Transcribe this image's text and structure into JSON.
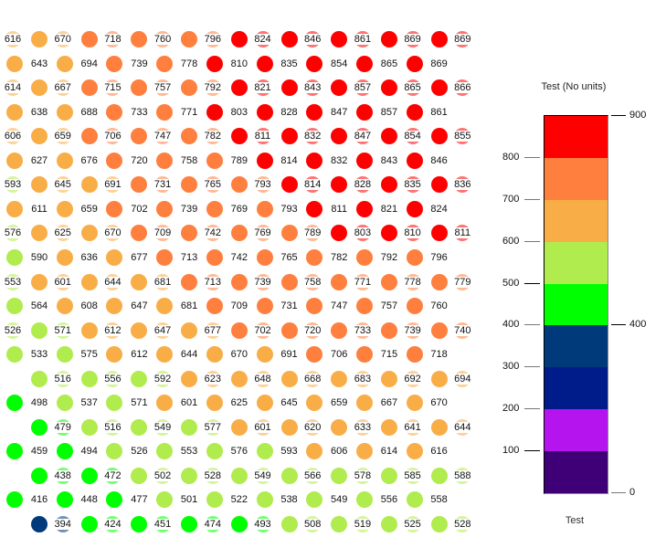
{
  "chart_data": {
    "type": "scatter",
    "title": "",
    "xlabel": "",
    "ylabel": "",
    "description": "Grid of colored dots with value labels; dot color determined by value bins",
    "rows": [
      {
        "pattern": "labeled",
        "values": [
          616,
          670,
          718,
          760,
          796,
          824,
          846,
          861,
          869,
          869
        ]
      },
      {
        "pattern": "dot",
        "values": [
          643,
          694,
          739,
          778,
          810,
          835,
          854,
          865,
          869
        ]
      },
      {
        "pattern": "labeled",
        "values": [
          614,
          667,
          715,
          757,
          792,
          821,
          843,
          857,
          865,
          866
        ]
      },
      {
        "pattern": "dot",
        "values": [
          638,
          688,
          733,
          771,
          803,
          828,
          847,
          857,
          861
        ]
      },
      {
        "pattern": "labeled",
        "values": [
          606,
          659,
          706,
          747,
          782,
          811,
          832,
          847,
          854,
          855
        ]
      },
      {
        "pattern": "dot",
        "values": [
          627,
          676,
          720,
          758,
          789,
          814,
          832,
          843,
          846
        ]
      },
      {
        "pattern": "labeled",
        "values": [
          593,
          645,
          691,
          731,
          765,
          793,
          814,
          828,
          835,
          836
        ]
      },
      {
        "pattern": "dot",
        "values": [
          611,
          659,
          702,
          739,
          769,
          793,
          811,
          821,
          824
        ]
      },
      {
        "pattern": "labeled",
        "values": [
          576,
          625,
          670,
          709,
          742,
          769,
          789,
          803,
          810,
          811
        ]
      },
      {
        "pattern": "dot",
        "values": [
          590,
          636,
          677,
          713,
          742,
          765,
          782,
          792,
          796
        ]
      },
      {
        "pattern": "labeled",
        "values": [
          553,
          601,
          644,
          681,
          713,
          739,
          758,
          771,
          778,
          779
        ]
      },
      {
        "pattern": "dot",
        "values": [
          564,
          608,
          647,
          681,
          709,
          731,
          747,
          757,
          760
        ]
      },
      {
        "pattern": "labeled",
        "values": [
          526,
          571,
          612,
          647,
          677,
          702,
          720,
          733,
          739,
          740
        ]
      },
      {
        "pattern": "dot",
        "values": [
          533,
          575,
          612,
          644,
          670,
          691,
          706,
          715,
          718
        ]
      },
      {
        "pattern": "labeled",
        "values": [
          null,
          516,
          556,
          592,
          623,
          648,
          668,
          683,
          692,
          694
        ]
      },
      {
        "pattern": "dot",
        "values": [
          498,
          537,
          571,
          601,
          625,
          645,
          659,
          667,
          670
        ]
      },
      {
        "pattern": "labeled",
        "values": [
          null,
          479,
          516,
          549,
          577,
          601,
          620,
          633,
          641,
          644
        ]
      },
      {
        "pattern": "dot",
        "values": [
          459,
          494,
          526,
          553,
          576,
          593,
          606,
          614,
          616
        ]
      },
      {
        "pattern": "labeled",
        "values": [
          null,
          438,
          472,
          502,
          528,
          549,
          566,
          578,
          585,
          588
        ]
      },
      {
        "pattern": "dot",
        "values": [
          416,
          448,
          477,
          501,
          522,
          538,
          549,
          556,
          558
        ]
      },
      {
        "pattern": "labeled",
        "values": [
          null,
          394,
          424,
          451,
          474,
          493,
          508,
          519,
          525,
          528
        ]
      }
    ],
    "legend": {
      "title": "Test (No units)",
      "footer": "Test",
      "range": [
        0,
        900
      ],
      "bins": [
        {
          "from": 800,
          "to": 900,
          "color": "#ff0000"
        },
        {
          "from": 700,
          "to": 800,
          "color": "#ff7f3f"
        },
        {
          "from": 600,
          "to": 700,
          "color": "#f9ad47"
        },
        {
          "from": 500,
          "to": 600,
          "color": "#b0ec4d"
        },
        {
          "from": 400,
          "to": 500,
          "color": "#00ff00"
        },
        {
          "from": 300,
          "to": 400,
          "color": "#003a7a"
        },
        {
          "from": 200,
          "to": 300,
          "color": "#001c8a"
        },
        {
          "from": 100,
          "to": 200,
          "color": "#b514ef"
        },
        {
          "from": 0,
          "to": 100,
          "color": "#3f0077"
        }
      ],
      "left_ticks": [
        800,
        700,
        600,
        500,
        400,
        300,
        200,
        100
      ],
      "right_ticks": [
        900,
        400,
        0
      ]
    }
  }
}
